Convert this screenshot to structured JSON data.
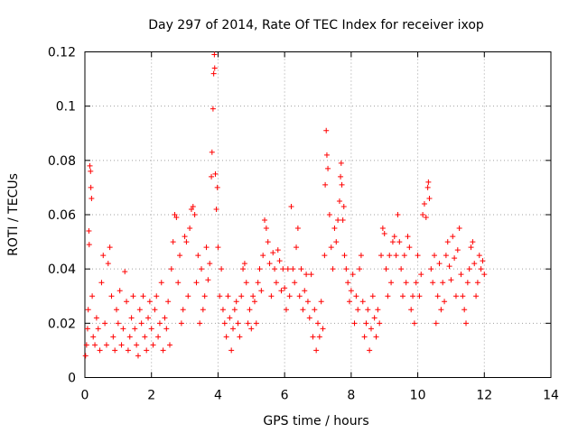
{
  "chart_data": {
    "type": "scatter",
    "title": "Day 297 of 2014, Rate Of TEC Index for receiver ixop",
    "xlabel": "GPS time / hours",
    "ylabel": "ROTI / TECUs",
    "xlim": [
      0,
      14
    ],
    "ylim": [
      0,
      0.12
    ],
    "x_ticks": [
      0,
      2,
      4,
      6,
      8,
      10,
      12,
      14
    ],
    "x_tick_labels": [
      "0",
      "2",
      "4",
      "6",
      "8",
      "10",
      "12",
      "14"
    ],
    "y_ticks": [
      0,
      0.02,
      0.04,
      0.06,
      0.08,
      0.1,
      0.12
    ],
    "y_tick_labels": [
      "0",
      "0.02",
      "0.04",
      "0.06",
      "0.08",
      "0.1",
      "0.12"
    ],
    "grid": true,
    "marker": "+",
    "color": "#ff0000",
    "series": [
      {
        "name": "ROTI",
        "points": [
          [
            0.02,
            0.008
          ],
          [
            0.05,
            0.012
          ],
          [
            0.08,
            0.018
          ],
          [
            0.1,
            0.025
          ],
          [
            0.12,
            0.054
          ],
          [
            0.13,
            0.049
          ],
          [
            0.15,
            0.078
          ],
          [
            0.17,
            0.076
          ],
          [
            0.18,
            0.07
          ],
          [
            0.2,
            0.066
          ],
          [
            0.22,
            0.03
          ],
          [
            0.25,
            0.015
          ],
          [
            0.3,
            0.012
          ],
          [
            0.35,
            0.022
          ],
          [
            0.4,
            0.018
          ],
          [
            0.45,
            0.01
          ],
          [
            0.5,
            0.035
          ],
          [
            0.55,
            0.045
          ],
          [
            0.6,
            0.02
          ],
          [
            0.65,
            0.012
          ],
          [
            0.7,
            0.042
          ],
          [
            0.75,
            0.048
          ],
          [
            0.8,
            0.03
          ],
          [
            0.85,
            0.015
          ],
          [
            0.9,
            0.01
          ],
          [
            0.95,
            0.025
          ],
          [
            1.0,
            0.02
          ],
          [
            1.05,
            0.032
          ],
          [
            1.1,
            0.012
          ],
          [
            1.15,
            0.018
          ],
          [
            1.2,
            0.039
          ],
          [
            1.25,
            0.028
          ],
          [
            1.3,
            0.01
          ],
          [
            1.35,
            0.015
          ],
          [
            1.4,
            0.022
          ],
          [
            1.45,
            0.03
          ],
          [
            1.5,
            0.018
          ],
          [
            1.55,
            0.012
          ],
          [
            1.6,
            0.008
          ],
          [
            1.65,
            0.025
          ],
          [
            1.7,
            0.02
          ],
          [
            1.75,
            0.03
          ],
          [
            1.8,
            0.015
          ],
          [
            1.85,
            0.01
          ],
          [
            1.9,
            0.022
          ],
          [
            1.95,
            0.028
          ],
          [
            2.0,
            0.018
          ],
          [
            2.05,
            0.012
          ],
          [
            2.1,
            0.025
          ],
          [
            2.15,
            0.03
          ],
          [
            2.2,
            0.015
          ],
          [
            2.25,
            0.02
          ],
          [
            2.3,
            0.035
          ],
          [
            2.35,
            0.01
          ],
          [
            2.4,
            0.022
          ],
          [
            2.45,
            0.018
          ],
          [
            2.5,
            0.028
          ],
          [
            2.55,
            0.012
          ],
          [
            2.6,
            0.04
          ],
          [
            2.65,
            0.05
          ],
          [
            2.7,
            0.06
          ],
          [
            2.75,
            0.059
          ],
          [
            2.8,
            0.035
          ],
          [
            2.85,
            0.045
          ],
          [
            2.9,
            0.02
          ],
          [
            2.95,
            0.025
          ],
          [
            3.0,
            0.052
          ],
          [
            3.05,
            0.05
          ],
          [
            3.1,
            0.03
          ],
          [
            3.15,
            0.055
          ],
          [
            3.2,
            0.062
          ],
          [
            3.25,
            0.063
          ],
          [
            3.3,
            0.06
          ],
          [
            3.35,
            0.035
          ],
          [
            3.4,
            0.045
          ],
          [
            3.45,
            0.02
          ],
          [
            3.5,
            0.04
          ],
          [
            3.55,
            0.025
          ],
          [
            3.6,
            0.03
          ],
          [
            3.65,
            0.048
          ],
          [
            3.7,
            0.036
          ],
          [
            3.75,
            0.042
          ],
          [
            3.8,
            0.074
          ],
          [
            3.82,
            0.083
          ],
          [
            3.85,
            0.099
          ],
          [
            3.87,
            0.112
          ],
          [
            3.89,
            0.119
          ],
          [
            3.9,
            0.114
          ],
          [
            3.92,
            0.075
          ],
          [
            3.95,
            0.062
          ],
          [
            3.98,
            0.07
          ],
          [
            4.0,
            0.048
          ],
          [
            4.05,
            0.03
          ],
          [
            4.1,
            0.04
          ],
          [
            4.15,
            0.025
          ],
          [
            4.2,
            0.02
          ],
          [
            4.25,
            0.015
          ],
          [
            4.3,
            0.03
          ],
          [
            4.35,
            0.022
          ],
          [
            4.4,
            0.01
          ],
          [
            4.45,
            0.018
          ],
          [
            4.5,
            0.025
          ],
          [
            4.55,
            0.028
          ],
          [
            4.6,
            0.02
          ],
          [
            4.65,
            0.015
          ],
          [
            4.7,
            0.03
          ],
          [
            4.75,
            0.04
          ],
          [
            4.8,
            0.042
          ],
          [
            4.85,
            0.035
          ],
          [
            4.9,
            0.02
          ],
          [
            4.95,
            0.025
          ],
          [
            5.0,
            0.018
          ],
          [
            5.05,
            0.03
          ],
          [
            5.1,
            0.028
          ],
          [
            5.15,
            0.02
          ],
          [
            5.2,
            0.035
          ],
          [
            5.25,
            0.04
          ],
          [
            5.3,
            0.032
          ],
          [
            5.35,
            0.045
          ],
          [
            5.4,
            0.058
          ],
          [
            5.45,
            0.055
          ],
          [
            5.5,
            0.05
          ],
          [
            5.55,
            0.042
          ],
          [
            5.6,
            0.03
          ],
          [
            5.65,
            0.046
          ],
          [
            5.7,
            0.04
          ],
          [
            5.75,
            0.035
          ],
          [
            5.8,
            0.047
          ],
          [
            5.85,
            0.043
          ],
          [
            5.9,
            0.032
          ],
          [
            5.95,
            0.04
          ],
          [
            6.0,
            0.033
          ],
          [
            6.05,
            0.025
          ],
          [
            6.1,
            0.04
          ],
          [
            6.15,
            0.03
          ],
          [
            6.2,
            0.063
          ],
          [
            6.25,
            0.04
          ],
          [
            6.3,
            0.035
          ],
          [
            6.35,
            0.048
          ],
          [
            6.4,
            0.055
          ],
          [
            6.45,
            0.03
          ],
          [
            6.5,
            0.04
          ],
          [
            6.55,
            0.025
          ],
          [
            6.6,
            0.032
          ],
          [
            6.65,
            0.038
          ],
          [
            6.7,
            0.028
          ],
          [
            6.75,
            0.022
          ],
          [
            6.8,
            0.038
          ],
          [
            6.85,
            0.015
          ],
          [
            6.9,
            0.025
          ],
          [
            6.95,
            0.01
          ],
          [
            7.0,
            0.02
          ],
          [
            7.05,
            0.015
          ],
          [
            7.1,
            0.028
          ],
          [
            7.15,
            0.018
          ],
          [
            7.2,
            0.045
          ],
          [
            7.22,
            0.071
          ],
          [
            7.25,
            0.091
          ],
          [
            7.27,
            0.082
          ],
          [
            7.3,
            0.077
          ],
          [
            7.35,
            0.06
          ],
          [
            7.4,
            0.048
          ],
          [
            7.45,
            0.04
          ],
          [
            7.5,
            0.055
          ],
          [
            7.55,
            0.05
          ],
          [
            7.6,
            0.058
          ],
          [
            7.65,
            0.065
          ],
          [
            7.68,
            0.074
          ],
          [
            7.7,
            0.079
          ],
          [
            7.72,
            0.071
          ],
          [
            7.75,
            0.058
          ],
          [
            7.78,
            0.063
          ],
          [
            7.8,
            0.045
          ],
          [
            7.85,
            0.04
          ],
          [
            7.9,
            0.035
          ],
          [
            7.95,
            0.028
          ],
          [
            8.0,
            0.032
          ],
          [
            8.05,
            0.038
          ],
          [
            8.1,
            0.02
          ],
          [
            8.15,
            0.03
          ],
          [
            8.2,
            0.025
          ],
          [
            8.25,
            0.04
          ],
          [
            8.3,
            0.045
          ],
          [
            8.35,
            0.028
          ],
          [
            8.4,
            0.015
          ],
          [
            8.45,
            0.02
          ],
          [
            8.5,
            0.025
          ],
          [
            8.55,
            0.01
          ],
          [
            8.6,
            0.018
          ],
          [
            8.65,
            0.03
          ],
          [
            8.7,
            0.022
          ],
          [
            8.75,
            0.015
          ],
          [
            8.8,
            0.025
          ],
          [
            8.85,
            0.02
          ],
          [
            8.9,
            0.045
          ],
          [
            8.95,
            0.055
          ],
          [
            9.0,
            0.053
          ],
          [
            9.05,
            0.04
          ],
          [
            9.1,
            0.03
          ],
          [
            9.15,
            0.045
          ],
          [
            9.2,
            0.035
          ],
          [
            9.25,
            0.05
          ],
          [
            9.3,
            0.052
          ],
          [
            9.35,
            0.045
          ],
          [
            9.4,
            0.06
          ],
          [
            9.45,
            0.05
          ],
          [
            9.5,
            0.04
          ],
          [
            9.55,
            0.03
          ],
          [
            9.6,
            0.045
          ],
          [
            9.65,
            0.035
          ],
          [
            9.7,
            0.052
          ],
          [
            9.75,
            0.048
          ],
          [
            9.8,
            0.025
          ],
          [
            9.85,
            0.03
          ],
          [
            9.9,
            0.02
          ],
          [
            9.95,
            0.035
          ],
          [
            10.0,
            0.045
          ],
          [
            10.05,
            0.03
          ],
          [
            10.1,
            0.038
          ],
          [
            10.15,
            0.06
          ],
          [
            10.2,
            0.064
          ],
          [
            10.25,
            0.059
          ],
          [
            10.3,
            0.07
          ],
          [
            10.32,
            0.072
          ],
          [
            10.35,
            0.066
          ],
          [
            10.4,
            0.04
          ],
          [
            10.45,
            0.035
          ],
          [
            10.5,
            0.045
          ],
          [
            10.55,
            0.02
          ],
          [
            10.6,
            0.03
          ],
          [
            10.65,
            0.042
          ],
          [
            10.7,
            0.025
          ],
          [
            10.75,
            0.035
          ],
          [
            10.8,
            0.028
          ],
          [
            10.85,
            0.045
          ],
          [
            10.9,
            0.05
          ],
          [
            10.95,
            0.041
          ],
          [
            11.0,
            0.036
          ],
          [
            11.05,
            0.052
          ],
          [
            11.1,
            0.044
          ],
          [
            11.15,
            0.03
          ],
          [
            11.2,
            0.047
          ],
          [
            11.25,
            0.055
          ],
          [
            11.3,
            0.038
          ],
          [
            11.35,
            0.03
          ],
          [
            11.4,
            0.025
          ],
          [
            11.45,
            0.02
          ],
          [
            11.5,
            0.035
          ],
          [
            11.55,
            0.04
          ],
          [
            11.6,
            0.048
          ],
          [
            11.65,
            0.05
          ],
          [
            11.7,
            0.042
          ],
          [
            11.75,
            0.03
          ],
          [
            11.8,
            0.035
          ],
          [
            11.85,
            0.045
          ],
          [
            11.9,
            0.04
          ],
          [
            11.95,
            0.043
          ],
          [
            12.0,
            0.038
          ]
        ]
      }
    ]
  }
}
